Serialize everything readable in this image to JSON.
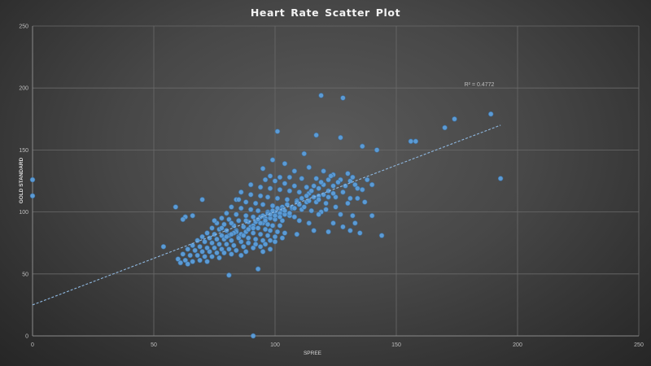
{
  "chart_data": {
    "type": "scatter",
    "title": "Heart Rate Scatter Plot",
    "xlabel": "SPREE",
    "ylabel": "GOLD STANDARD",
    "xlim": [
      0,
      250
    ],
    "ylim": [
      0,
      250
    ],
    "x_ticks": [
      0,
      50,
      100,
      150,
      200,
      250
    ],
    "y_ticks": [
      0,
      50,
      100,
      150,
      200,
      250
    ],
    "grid": true,
    "legend": null,
    "marker_color": "#5b9bd5",
    "trendline": {
      "type": "linear",
      "style": "dashed",
      "color": "#8fb8e0",
      "x_start": 0,
      "y_start": 25,
      "x_end": 193,
      "y_end": 170,
      "r_squared_label": "R² = 0.4772",
      "r_squared": 0.4772
    },
    "series": [
      {
        "name": "Heart Rate",
        "points": [
          [
            0,
            126
          ],
          [
            0,
            113
          ],
          [
            91,
            0
          ],
          [
            119,
            194
          ],
          [
            128,
            192
          ],
          [
            101,
            165
          ],
          [
            117,
            162
          ],
          [
            127,
            160
          ],
          [
            189,
            179
          ],
          [
            174,
            175
          ],
          [
            170,
            168
          ],
          [
            156,
            157
          ],
          [
            158,
            157
          ],
          [
            136,
            153
          ],
          [
            142,
            150
          ],
          [
            193,
            127
          ],
          [
            99,
            142
          ],
          [
            112,
            147
          ],
          [
            104,
            139
          ],
          [
            114,
            136
          ],
          [
            120,
            133
          ],
          [
            124,
            130
          ],
          [
            130,
            131
          ],
          [
            108,
            133
          ],
          [
            95,
            135
          ],
          [
            111,
            127
          ],
          [
            117,
            127
          ],
          [
            122,
            126
          ],
          [
            127,
            126
          ],
          [
            131,
            125
          ],
          [
            133,
            122
          ],
          [
            129,
            121
          ],
          [
            124,
            121
          ],
          [
            120,
            122
          ],
          [
            136,
            118
          ],
          [
            98,
            129
          ],
          [
            102,
            128
          ],
          [
            106,
            128
          ],
          [
            96,
            126
          ],
          [
            100,
            125
          ],
          [
            104,
            123
          ],
          [
            108,
            121
          ],
          [
            113,
            120
          ],
          [
            118,
            119
          ],
          [
            122,
            117
          ],
          [
            90,
            122
          ],
          [
            94,
            120
          ],
          [
            98,
            119
          ],
          [
            102,
            118
          ],
          [
            106,
            117
          ],
          [
            110,
            116
          ],
          [
            114,
            115
          ],
          [
            118,
            113
          ],
          [
            125,
            112
          ],
          [
            131,
            111
          ],
          [
            86,
            116
          ],
          [
            90,
            114
          ],
          [
            94,
            113
          ],
          [
            97,
            112
          ],
          [
            101,
            111
          ],
          [
            105,
            110
          ],
          [
            109,
            109
          ],
          [
            113,
            108
          ],
          [
            117,
            108
          ],
          [
            121,
            107
          ],
          [
            84,
            110
          ],
          [
            88,
            108
          ],
          [
            92,
            107
          ],
          [
            95,
            106
          ],
          [
            99,
            105
          ],
          [
            103,
            104
          ],
          [
            107,
            103
          ],
          [
            111,
            102
          ],
          [
            115,
            101
          ],
          [
            119,
            100
          ],
          [
            82,
            104
          ],
          [
            86,
            103
          ],
          [
            90,
            102
          ],
          [
            93,
            101
          ],
          [
            97,
            100
          ],
          [
            100,
            100
          ],
          [
            102,
            99
          ],
          [
            104,
            98
          ],
          [
            106,
            97
          ],
          [
            108,
            96
          ],
          [
            80,
            99
          ],
          [
            84,
            98
          ],
          [
            88,
            97
          ],
          [
            91,
            96
          ],
          [
            94,
            96
          ],
          [
            96,
            95
          ],
          [
            98,
            95
          ],
          [
            100,
            94
          ],
          [
            103,
            93
          ],
          [
            110,
            93
          ],
          [
            78,
            95
          ],
          [
            81,
            94
          ],
          [
            85,
            93
          ],
          [
            89,
            92
          ],
          [
            92,
            92
          ],
          [
            95,
            91
          ],
          [
            97,
            90
          ],
          [
            99,
            89
          ],
          [
            102,
            89
          ],
          [
            114,
            91
          ],
          [
            76,
            91
          ],
          [
            79,
            90
          ],
          [
            83,
            89
          ],
          [
            87,
            88
          ],
          [
            90,
            88
          ],
          [
            93,
            87
          ],
          [
            96,
            86
          ],
          [
            98,
            85
          ],
          [
            101,
            84
          ],
          [
            104,
            83
          ],
          [
            74,
            87
          ],
          [
            77,
            86
          ],
          [
            80,
            85
          ],
          [
            84,
            85
          ],
          [
            88,
            84
          ],
          [
            91,
            83
          ],
          [
            94,
            82
          ],
          [
            97,
            81
          ],
          [
            100,
            80
          ],
          [
            109,
            82
          ],
          [
            72,
            83
          ],
          [
            75,
            82
          ],
          [
            78,
            81
          ],
          [
            81,
            81
          ],
          [
            85,
            80
          ],
          [
            89,
            79
          ],
          [
            92,
            78
          ],
          [
            95,
            77
          ],
          [
            98,
            77
          ],
          [
            103,
            79
          ],
          [
            70,
            80
          ],
          [
            73,
            79
          ],
          [
            76,
            78
          ],
          [
            79,
            78
          ],
          [
            82,
            77
          ],
          [
            86,
            76
          ],
          [
            89,
            75
          ],
          [
            92,
            74
          ],
          [
            96,
            74
          ],
          [
            100,
            76
          ],
          [
            68,
            77
          ],
          [
            71,
            76
          ],
          [
            74,
            75
          ],
          [
            77,
            74
          ],
          [
            80,
            74
          ],
          [
            83,
            73
          ],
          [
            87,
            72
          ],
          [
            91,
            71
          ],
          [
            94,
            72
          ],
          [
            98,
            70
          ],
          [
            66,
            73
          ],
          [
            69,
            72
          ],
          [
            72,
            71
          ],
          [
            75,
            71
          ],
          [
            78,
            70
          ],
          [
            81,
            70
          ],
          [
            84,
            69
          ],
          [
            88,
            68
          ],
          [
            95,
            68
          ],
          [
            64,
            70
          ],
          [
            67,
            69
          ],
          [
            70,
            68
          ],
          [
            73,
            68
          ],
          [
            76,
            67
          ],
          [
            79,
            67
          ],
          [
            82,
            66
          ],
          [
            86,
            65
          ],
          [
            62,
            66
          ],
          [
            65,
            65
          ],
          [
            68,
            65
          ],
          [
            71,
            64
          ],
          [
            74,
            64
          ],
          [
            77,
            63
          ],
          [
            60,
            62
          ],
          [
            63,
            61
          ],
          [
            66,
            60
          ],
          [
            69,
            61
          ],
          [
            72,
            60
          ],
          [
            61,
            59
          ],
          [
            64,
            58
          ],
          [
            59,
            104
          ],
          [
            54,
            72
          ],
          [
            81,
            49
          ],
          [
            93,
            54
          ],
          [
            63,
            96
          ],
          [
            66,
            97
          ],
          [
            70,
            110
          ],
          [
            62,
            94
          ],
          [
            75,
            93
          ],
          [
            85,
            110
          ],
          [
            144,
            81
          ],
          [
            140,
            97
          ],
          [
            136,
            118
          ],
          [
            124,
            91
          ],
          [
            128,
            88
          ],
          [
            131,
            85
          ],
          [
            133,
            91
          ],
          [
            135,
            83
          ],
          [
            122,
            84
          ],
          [
            116,
            85
          ],
          [
            118,
            98
          ],
          [
            121,
            102
          ],
          [
            125,
            104
          ],
          [
            130,
            107
          ],
          [
            134,
            111
          ],
          [
            137,
            108
          ],
          [
            132,
            97
          ],
          [
            127,
            98
          ],
          [
            84,
            84
          ],
          [
            86,
            82
          ],
          [
            83,
            83
          ],
          [
            85,
            79
          ],
          [
            80,
            80
          ],
          [
            82,
            82
          ],
          [
            87,
            81
          ],
          [
            89,
            86
          ],
          [
            91,
            89
          ],
          [
            93,
            94
          ],
          [
            95,
            97
          ],
          [
            97,
            99
          ],
          [
            99,
            101
          ],
          [
            101,
            103
          ],
          [
            103,
            102
          ],
          [
            105,
            106
          ],
          [
            107,
            104
          ],
          [
            109,
            108
          ],
          [
            111,
            111
          ],
          [
            113,
            113
          ],
          [
            115,
            117
          ],
          [
            116,
            121
          ],
          [
            119,
            124
          ],
          [
            123,
            129
          ],
          [
            126,
            124
          ],
          [
            128,
            116
          ],
          [
            134,
            119
          ],
          [
            138,
            126
          ],
          [
            140,
            122
          ],
          [
            132,
            128
          ],
          [
            78,
            87
          ],
          [
            82,
            91
          ],
          [
            88,
            93
          ],
          [
            91,
            87
          ],
          [
            94,
            91
          ],
          [
            96,
            93
          ],
          [
            98,
            98
          ],
          [
            100,
            97
          ],
          [
            102,
            96
          ],
          [
            104,
            101
          ],
          [
            106,
            99
          ],
          [
            108,
            103
          ],
          [
            110,
            106
          ],
          [
            112,
            104
          ],
          [
            114,
            109
          ],
          [
            116,
            112
          ],
          [
            118,
            110
          ],
          [
            120,
            114
          ],
          [
            122,
            112
          ],
          [
            124,
            115
          ]
        ]
      }
    ]
  }
}
